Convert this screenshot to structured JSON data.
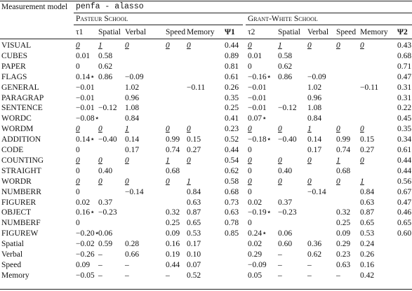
{
  "header": {
    "label": "Measurement model",
    "model": "penfa - alasso"
  },
  "groups": [
    "Pasteur School",
    "Grant-White School"
  ],
  "table": {
    "columns": [
      "τ1",
      "Spatial",
      "Verbal",
      "Speed",
      "Memory",
      "Ψ1",
      "τ2",
      "Spatial",
      "Verbal",
      "Speed",
      "Memory",
      "Ψ2"
    ],
    "rows": [
      {
        "label": "VISUAL",
        "cells": [
          {
            "text": "0",
            "fixed": true
          },
          {
            "text": "1",
            "fixed": true
          },
          {
            "text": "0",
            "fixed": true
          },
          {
            "text": "0",
            "fixed": true
          },
          {
            "text": "0",
            "fixed": true
          },
          "0.44",
          {
            "text": "0",
            "fixed": true
          },
          {
            "text": "1",
            "fixed": true
          },
          {
            "text": "0",
            "fixed": true
          },
          {
            "text": "0",
            "fixed": true
          },
          {
            "text": "0",
            "fixed": true
          },
          "0.43"
        ]
      },
      {
        "label": "CUBES",
        "cells": [
          "0.01",
          "0.58",
          null,
          null,
          null,
          "0.89",
          "0.01",
          "0.58",
          null,
          null,
          null,
          "0.68"
        ]
      },
      {
        "label": "PAPER",
        "cells": [
          "0",
          "0.62",
          null,
          null,
          null,
          "0.81",
          "0",
          "0.62",
          null,
          null,
          null,
          "0.71"
        ]
      },
      {
        "label": "FLAGS",
        "cells": [
          "0.14⋆",
          "0.86",
          "−0.09",
          null,
          null,
          "0.61",
          "−0.16⋆",
          "0.86",
          "−0.09",
          null,
          null,
          "0.47"
        ]
      },
      {
        "label": "GENERAL",
        "cells": [
          "−0.01",
          null,
          "1.02",
          null,
          "−0.11",
          "0.26",
          "−0.01",
          null,
          "1.02",
          null,
          "−0.11",
          "0.31"
        ]
      },
      {
        "label": "PARAGRAP",
        "cells": [
          "−0.01",
          null,
          "0.96",
          null,
          null,
          "0.35",
          "−0.01",
          null,
          "0.96",
          null,
          null,
          "0.31"
        ]
      },
      {
        "label": "SENTENCE",
        "cells": [
          "−0.01",
          "−0.12",
          "1.08",
          null,
          null,
          "0.25",
          "−0.01",
          "−0.12",
          "1.08",
          null,
          null,
          "0.22"
        ]
      },
      {
        "label": "WORDC",
        "cells": [
          "−0.08⋆",
          null,
          "0.84",
          null,
          null,
          "0.41",
          "0.07⋆",
          null,
          "0.84",
          null,
          null,
          "0.45"
        ]
      },
      {
        "label": "WORDM",
        "cells": [
          {
            "text": "0",
            "fixed": true
          },
          {
            "text": "0",
            "fixed": true
          },
          {
            "text": "1",
            "fixed": true
          },
          {
            "text": "0",
            "fixed": true
          },
          {
            "text": "0",
            "fixed": true
          },
          "0.23",
          {
            "text": "0",
            "fixed": true
          },
          {
            "text": "0",
            "fixed": true
          },
          {
            "text": "1",
            "fixed": true
          },
          {
            "text": "0",
            "fixed": true
          },
          {
            "text": "0",
            "fixed": true
          },
          "0.35"
        ]
      },
      {
        "label": "ADDITION",
        "cells": [
          "0.14⋆",
          "−0.40",
          "0.14",
          "0.99",
          "0.15",
          "0.52",
          "−0.18⋆",
          "−0.40",
          "0.14",
          "0.99",
          "0.15",
          "0.34"
        ]
      },
      {
        "label": "CODE",
        "cells": [
          "0",
          null,
          "0.17",
          "0.74",
          "0.27",
          "0.44",
          "0",
          null,
          "0.17",
          "0.74",
          "0.27",
          "0.61"
        ]
      },
      {
        "label": "COUNTING",
        "cells": [
          {
            "text": "0",
            "fixed": true
          },
          {
            "text": "0",
            "fixed": true
          },
          {
            "text": "0",
            "fixed": true
          },
          {
            "text": "1",
            "fixed": true
          },
          {
            "text": "0",
            "fixed": true
          },
          "0.54",
          {
            "text": "0",
            "fixed": true
          },
          {
            "text": "0",
            "fixed": true
          },
          {
            "text": "0",
            "fixed": true
          },
          {
            "text": "1",
            "fixed": true
          },
          {
            "text": "0",
            "fixed": true
          },
          "0.44"
        ]
      },
      {
        "label": "STRAIGHT",
        "cells": [
          "0",
          "0.40",
          null,
          "0.68",
          null,
          "0.62",
          "0",
          "0.40",
          null,
          "0.68",
          null,
          "0.44"
        ]
      },
      {
        "label": "WORDR",
        "cells": [
          {
            "text": "0",
            "fixed": true
          },
          {
            "text": "0",
            "fixed": true
          },
          {
            "text": "0",
            "fixed": true
          },
          {
            "text": "0",
            "fixed": true
          },
          {
            "text": "1",
            "fixed": true
          },
          "0.58",
          {
            "text": "0",
            "fixed": true
          },
          {
            "text": "0",
            "fixed": true
          },
          {
            "text": "0",
            "fixed": true
          },
          {
            "text": "0",
            "fixed": true
          },
          {
            "text": "1",
            "fixed": true
          },
          "0.56"
        ]
      },
      {
        "label": "NUMBERR",
        "cells": [
          "0",
          null,
          "−0.14",
          null,
          "0.84",
          "0.68",
          "0",
          null,
          "−0.14",
          null,
          "0.84",
          "0.67"
        ]
      },
      {
        "label": "FIGURER",
        "cells": [
          "0.02",
          "0.37",
          null,
          null,
          "0.63",
          "0.73",
          "0.02",
          "0.37",
          null,
          null,
          "0.63",
          "0.47"
        ]
      },
      {
        "label": "OBJECT",
        "cells": [
          "0.16⋆",
          "−0.23",
          null,
          "0.32",
          "0.87",
          "0.63",
          "−0.19⋆",
          "−0.23",
          null,
          "0.32",
          "0.87",
          "0.46"
        ]
      },
      {
        "label": "NUMBERF",
        "cells": [
          "0",
          null,
          null,
          "0.25",
          "0.65",
          "0.78",
          "0",
          null,
          null,
          "0.25",
          "0.65",
          "0.65"
        ]
      },
      {
        "label": "FIGUREW",
        "cells": [
          "−0.20⋆",
          "0.06",
          null,
          "0.09",
          "0.53",
          "0.85",
          "0.24⋆",
          "0.06",
          null,
          "0.09",
          "0.53",
          "0.60"
        ]
      },
      {
        "label": "Spatial",
        "cells": [
          "−0.02",
          "0.59",
          "0.28",
          "0.16",
          "0.17",
          null,
          "0.02",
          "0.60",
          "0.36",
          "0.29",
          "0.24",
          null
        ]
      },
      {
        "label": "Verbal",
        "cells": [
          "−0.26",
          "–",
          "0.66",
          "0.19",
          "0.10",
          null,
          "0.29",
          "–",
          "0.62",
          "0.23",
          "0.26",
          null
        ]
      },
      {
        "label": "Speed",
        "cells": [
          "0.09",
          "–",
          "–",
          "0.44",
          "0.07",
          null,
          "−0.09",
          "–",
          "–",
          "0.63",
          "0.16",
          null
        ]
      },
      {
        "label": "Memory",
        "cells": [
          "−0.05",
          "–",
          "–",
          "–",
          "0.52",
          null,
          "0.05",
          "–",
          "–",
          "–",
          "0.42",
          null
        ]
      }
    ]
  }
}
